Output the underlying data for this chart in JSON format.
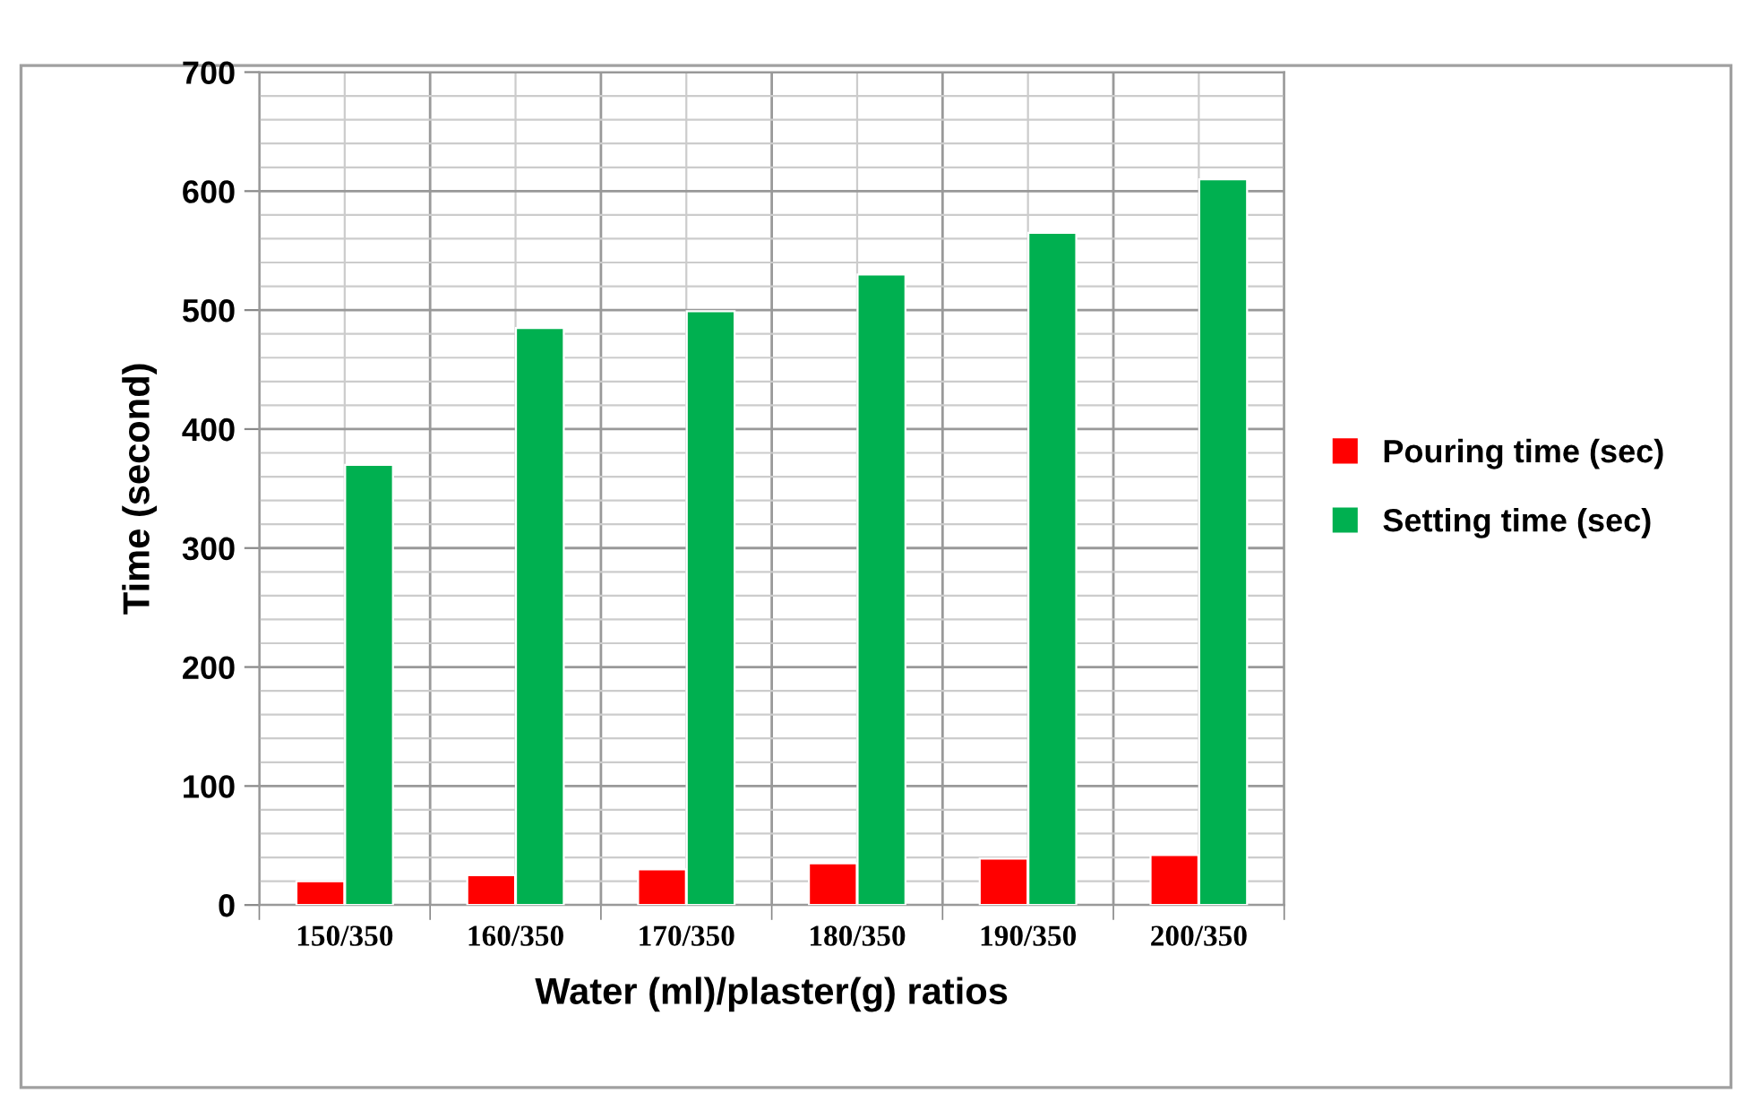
{
  "chart_data": {
    "type": "bar",
    "xlabel": "Water (ml)/plaster(g) ratios",
    "ylabel": "Time (second)",
    "categories": [
      "150/350",
      "160/350",
      "170/350",
      "180/350",
      "190/350",
      "200/350"
    ],
    "series": [
      {
        "name": "Pouring time (sec)",
        "color": "#ff0000",
        "values": [
          20,
          25,
          30,
          35,
          39,
          42
        ]
      },
      {
        "name": "Setting time (sec)",
        "color": "#00b050",
        "values": [
          370,
          485,
          499,
          530,
          565,
          610
        ]
      }
    ],
    "ylim": [
      0,
      700
    ],
    "yticks": [
      0,
      100,
      200,
      300,
      400,
      500,
      600,
      700
    ],
    "grid": true,
    "legend": "right"
  }
}
